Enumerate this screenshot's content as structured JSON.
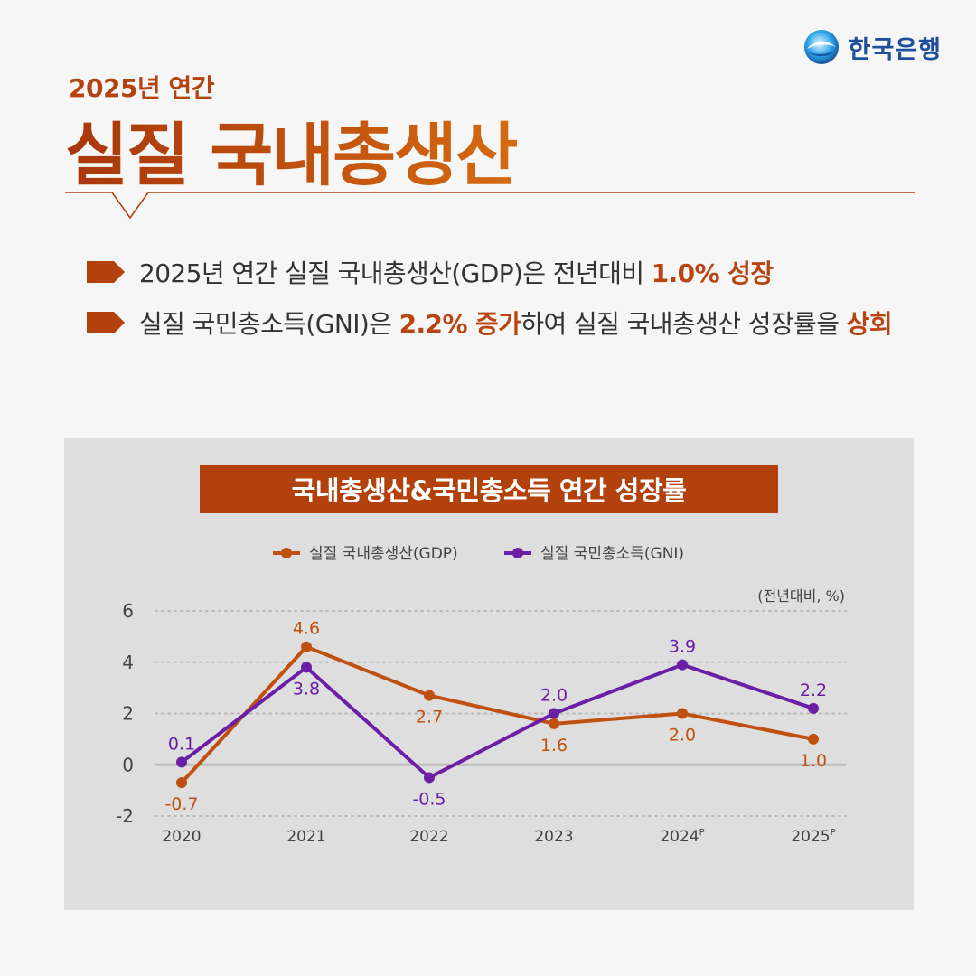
{
  "brand": {
    "name": "한국은행"
  },
  "header": {
    "subtitle": "2025년 연간",
    "title": "실질 국내총생산"
  },
  "bullets": [
    {
      "segments": [
        {
          "text": "2025년 연간 실질 국내총생산(GDP)은 전년대비 ",
          "highlight": false
        },
        {
          "text": "1.0% 성장",
          "highlight": true
        }
      ]
    },
    {
      "segments": [
        {
          "text": "실질 국민총소득(GNI)은 ",
          "highlight": false
        },
        {
          "text": "2.2% 증가",
          "highlight": true
        },
        {
          "text": "하여 실질 국내총생산 성장률을 ",
          "highlight": false
        },
        {
          "text": "상회",
          "highlight": true
        }
      ]
    }
  ],
  "colors": {
    "gdp": "#c0500f",
    "gni": "#6a1fa6",
    "accent": "#b3410c"
  },
  "chart_data": {
    "type": "line",
    "title": "국내총생산&국민총소득 연간 성장률",
    "unit_note": "(전년대비, %)",
    "x": [
      "2020",
      "2021",
      "2022",
      "2023",
      "2024",
      "2025"
    ],
    "x_superscripts": [
      "",
      "",
      "",
      "",
      "P",
      "P"
    ],
    "yticks": [
      "6",
      "4",
      "2",
      "0",
      "-2"
    ],
    "ylim": [
      -2,
      6
    ],
    "grid": true,
    "legend_position": "top-center",
    "series": [
      {
        "name": "실질 국내총생산(GDP)",
        "key": "gdp",
        "values": [
          -0.7,
          4.6,
          2.7,
          1.6,
          2.0,
          1.0
        ],
        "labels": [
          "-0.7",
          "4.6",
          "2.7",
          "1.6",
          "2.0",
          "1.0"
        ]
      },
      {
        "name": "실질 국민총소득(GNI)",
        "key": "gni",
        "values": [
          0.1,
          3.8,
          -0.5,
          2.0,
          3.9,
          2.2
        ],
        "labels": [
          "0.1",
          "3.8",
          "-0.5",
          "2.0",
          "3.9",
          "2.2"
        ]
      }
    ]
  }
}
